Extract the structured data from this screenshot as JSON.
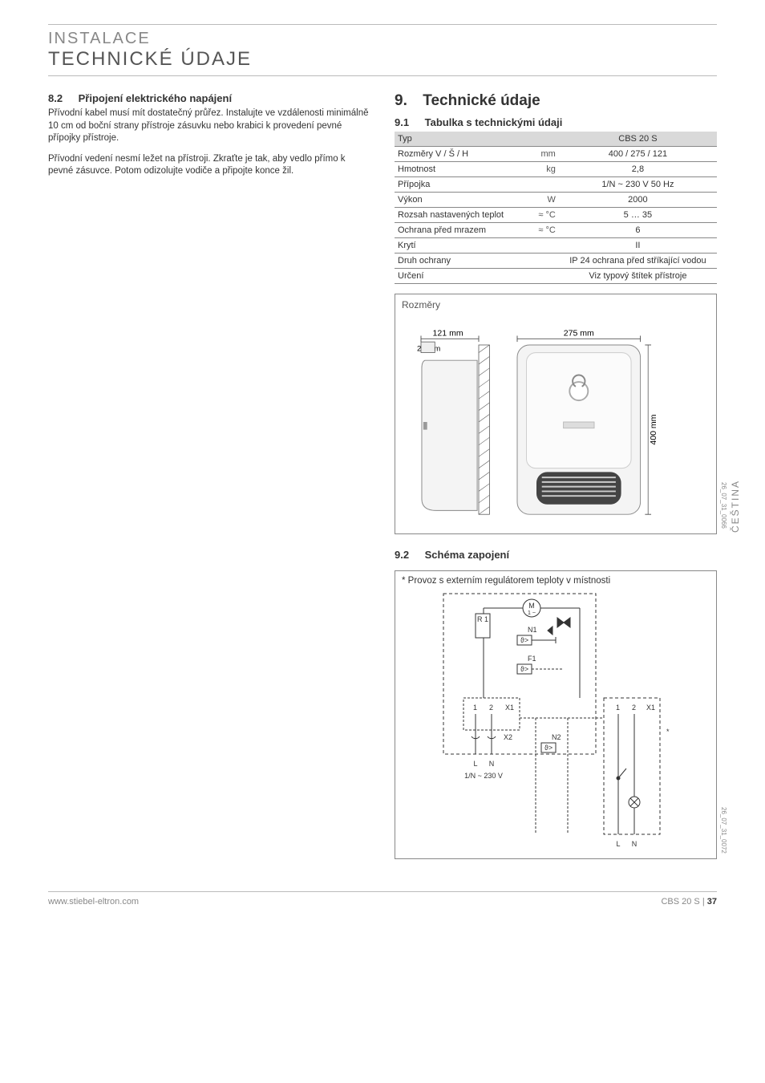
{
  "header": {
    "sup": "INSTALACE",
    "main": "TECHNICKÉ ÚDAJE"
  },
  "side_tab": "ČEŠTINA",
  "left": {
    "sec_num": "8.2",
    "sec_title": "Připojení elektrického napájení",
    "p1": "Přívodní kabel musí mít dostatečný průřez. Instalujte ve vzdálenosti minimálně 10 cm od boční strany přístroje zásuvku nebo krabici k provedení pevné přípojky přístroje.",
    "p2": "Přívodní vedení nesmí ležet na přístroji. Zkraťte je tak, aby vedlo přímo k pevné zásuvce. Potom odizolujte vodiče a připojte konce žil."
  },
  "right": {
    "h2_num": "9.",
    "h2_title": "Technické údaje",
    "sec91_num": "9.1",
    "sec91_title": "Tabulka s technickými údaji",
    "table": {
      "head_label": "Typ",
      "head_val": "CBS 20 S",
      "rows": [
        {
          "label": "Rozměry V / Š / H",
          "unit": "mm",
          "val": "400 / 275 / 121"
        },
        {
          "label": "Hmotnost",
          "unit": "kg",
          "val": "2,8"
        },
        {
          "label": "Přípojka",
          "unit": "",
          "val": "1/N ~ 230 V 50 Hz"
        },
        {
          "label": "Výkon",
          "unit": "W",
          "val": "2000"
        },
        {
          "label": "Rozsah nastavených teplot",
          "unit": "≈ °C",
          "val": "5 … 35"
        },
        {
          "label": "Ochrana před mrazem",
          "unit": "≈ °C",
          "val": "6"
        },
        {
          "label": "Krytí",
          "unit": "",
          "val": "II"
        },
        {
          "label": "Druh ochrany",
          "unit": "",
          "val": "IP 24 ochrana před stříkající vodou"
        },
        {
          "label": "Určení",
          "unit": "",
          "val": "Viz typový štítek přístroje"
        }
      ]
    },
    "fig1": {
      "title": "Rozměry",
      "dim_121": "121 mm",
      "dim_26": "26 mm",
      "dim_275": "275 mm",
      "dim_400": "400 mm",
      "ref": "26_07_31_0066"
    },
    "sec92_num": "9.2",
    "sec92_title": "Schéma zapojení",
    "fig2": {
      "note": "* Provoz s externím regulátorem teploty v místnosti",
      "labels": {
        "M": "M",
        "Msub": "1 ~",
        "R1": "R\n1",
        "N1": "N1",
        "F1": "F1",
        "X1": "X1",
        "X2": "X2",
        "N2": "N2",
        "one": "1",
        "two": "2",
        "L": "L",
        "N": "N",
        "supply": "1/N ~ 230 V",
        "star": "*"
      },
      "ref": "26_07_31_0072"
    }
  },
  "footer": {
    "left": "www.stiebel-eltron.com",
    "right_prefix": "CBS 20 S | ",
    "page": "37"
  }
}
